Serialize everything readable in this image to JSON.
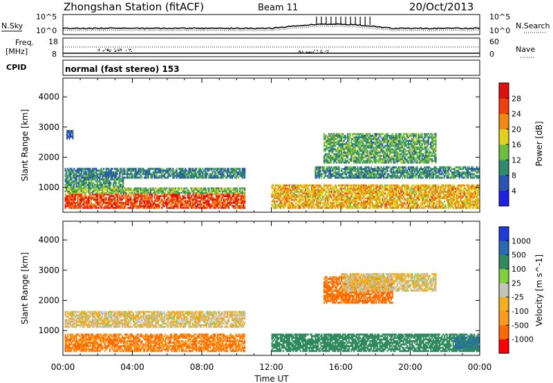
{
  "header": {
    "station": "Zhongshan Station (fitACF)",
    "beam": "Beam 11",
    "date": "20/Oct/2013"
  },
  "strips": {
    "nsky_label": "N.Sky",
    "nsearch_label": "N.Search",
    "freq_label_1": "Freq.",
    "freq_label_2": "[MHz]",
    "nave_label": "Nave",
    "cpid_label": "CPID",
    "cpid_value": "normal (fast stereo) 153",
    "noise_left_ticks": [
      "10^5",
      "10^0"
    ],
    "noise_right_ticks": [
      "10^5",
      "10^0"
    ],
    "freq_ticks": [
      "18",
      "8"
    ],
    "nave_ticks": [
      "60",
      "0"
    ]
  },
  "colors": {
    "power_scale": [
      "#2020e0",
      "#2a55b0",
      "#2f8a6e",
      "#6cbf3e",
      "#e0d020",
      "#f08a10",
      "#f04010",
      "#e01010"
    ],
    "velocity_scale": [
      "#ff0000",
      "#ff6a00",
      "#ff9a1e",
      "#f2b020",
      "#c4c4bc",
      "#80d040",
      "#2f8a5e",
      "#2a6ab0",
      "#1e3cd8"
    ]
  },
  "chart_data": [
    {
      "type": "heatmap",
      "title": "",
      "xlabel": "Time UT",
      "ylabel": "Slant Range [km]",
      "x_ticks": [
        "00:00",
        "04:00",
        "08:00",
        "12:00",
        "16:00",
        "20:00",
        "00:00"
      ],
      "xlim_hours": [
        0,
        24
      ],
      "y_ticks": [
        1000,
        2000,
        3000,
        4000
      ],
      "ylim": [
        180,
        4620
      ],
      "colorbar": {
        "label": "Power [dB]",
        "ticks": [
          4,
          8,
          12,
          16,
          20,
          24,
          28
        ],
        "range": [
          0,
          32
        ]
      },
      "echo_regions": [
        {
          "t0": 0.1,
          "t1": 10.5,
          "r0": 300,
          "r1": 800,
          "value": 26
        },
        {
          "t0": 0.1,
          "t1": 10.5,
          "r0": 800,
          "r1": 1000,
          "value": 14
        },
        {
          "t0": 0.1,
          "t1": 10.5,
          "r0": 1300,
          "r1": 1650,
          "value": 9
        },
        {
          "t0": 0.1,
          "t1": 3.5,
          "r0": 1000,
          "r1": 1300,
          "value": 11
        },
        {
          "t0": 0.2,
          "t1": 0.6,
          "r0": 2600,
          "r1": 2900,
          "value": 6
        },
        {
          "t0": 12.0,
          "t1": 24.0,
          "r0": 300,
          "r1": 1100,
          "value": 20
        },
        {
          "t0": 14.5,
          "t1": 24.0,
          "r0": 1300,
          "r1": 1700,
          "value": 10
        },
        {
          "t0": 15.0,
          "t1": 21.5,
          "r0": 1800,
          "r1": 2800,
          "value": 12
        }
      ]
    },
    {
      "type": "heatmap",
      "title": "",
      "xlabel": "Time UT",
      "ylabel": "Slant Range [km]",
      "x_ticks": [
        "00:00",
        "04:00",
        "08:00",
        "12:00",
        "16:00",
        "20:00",
        "00:00"
      ],
      "xlim_hours": [
        0,
        24
      ],
      "y_ticks": [
        1000,
        2000,
        3000,
        4000
      ],
      "ylim": [
        180,
        4620
      ],
      "colorbar": {
        "label": "Velocity [m s^-1]",
        "ticks": [
          "1000",
          "500",
          "100",
          "25",
          "-25",
          "-100",
          "-500",
          "-1000"
        ]
      },
      "echo_regions": [
        {
          "t0": 0.1,
          "t1": 10.5,
          "r0": 300,
          "r1": 900,
          "value": -100
        },
        {
          "t0": 0.1,
          "t1": 10.5,
          "r0": 1100,
          "r1": 1650,
          "value": 0
        },
        {
          "t0": 12.0,
          "t1": 24.0,
          "r0": 300,
          "r1": 900,
          "value": 200
        },
        {
          "t0": 15.0,
          "t1": 19.0,
          "r0": 1900,
          "r1": 2800,
          "value": -150
        },
        {
          "t0": 16.0,
          "t1": 21.5,
          "r0": 2300,
          "r1": 2900,
          "value": 0
        },
        {
          "t0": 22.5,
          "t1": 24.0,
          "r0": 400,
          "r1": 800,
          "value": 600
        }
      ]
    }
  ]
}
